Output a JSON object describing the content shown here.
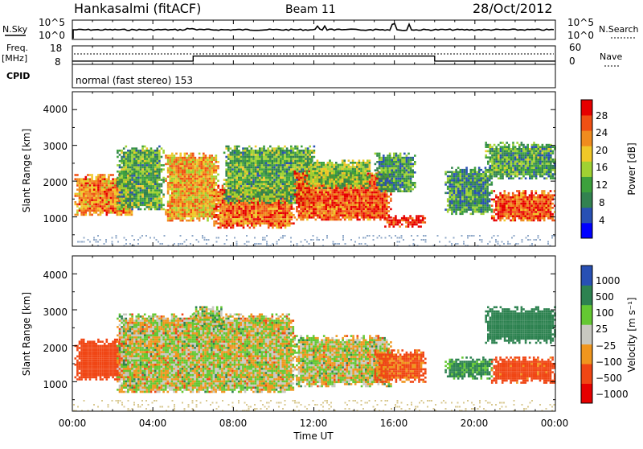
{
  "header": {
    "title": "Hankasalmi (fitACF)",
    "beam": "Beam 11",
    "date": "28/Oct/2012"
  },
  "top_panels": {
    "nsky_label": "N.Sky",
    "nsearch_label": "N.Search",
    "nsky_ticks": [
      "10^5",
      "10^0"
    ],
    "nsearch_ticks": [
      "10^5",
      "10^0"
    ],
    "freq_label": "Freq.",
    "freq_unit": "[MHz]",
    "freq_ticks": [
      "18",
      "8"
    ],
    "nave_label": "Nave",
    "nave_ticks": [
      "60",
      "0"
    ],
    "cpid_label": "CPID",
    "cpid_text": "normal (fast stereo) 153"
  },
  "power_panel": {
    "ylabel": "Slant Range [km]",
    "yticks": [
      "4000",
      "3000",
      "2000",
      "1000"
    ],
    "colorbar_label": "Power [dB]",
    "colorbar_ticks": [
      "28",
      "24",
      "20",
      "16",
      "12",
      "8",
      "4"
    ]
  },
  "velocity_panel": {
    "ylabel": "Slant Range [km]",
    "yticks": [
      "4000",
      "3000",
      "2000",
      "1000"
    ],
    "colorbar_label": "Velocity [m s⁻¹]",
    "colorbar_ticks": [
      "1000",
      "500",
      "100",
      "25",
      "−25",
      "−100",
      "−500",
      "−1000"
    ]
  },
  "xaxis": {
    "label": "Time UT",
    "ticks": [
      "00:00",
      "04:00",
      "08:00",
      "12:00",
      "16:00",
      "20:00",
      "00:00"
    ]
  },
  "chart_data": {
    "type": "heatmap",
    "title": "Hankasalmi (fitACF)",
    "xlabel": "Time UT",
    "ylabel": "Slant Range [km]",
    "x_range_hours": [
      0,
      24
    ],
    "ylim": [
      180,
      4500
    ],
    "freq_MHz": {
      "times": [
        0,
        6,
        6,
        18,
        18,
        24
      ],
      "values": [
        9.8,
        9.8,
        12.5,
        12.5,
        9.8,
        9.8
      ]
    },
    "nave": {
      "typical": 30
    },
    "power_colors": [
      "#0000ff",
      "#2850b4",
      "#328250",
      "#3ca03c",
      "#a0d232",
      "#f0c828",
      "#f08c1e",
      "#f05014",
      "#e60000"
    ],
    "power_scale_dB": [
      0,
      30
    ],
    "velocity_colors": [
      "#e60000",
      "#f04614",
      "#f0961e",
      "#c8c8c0",
      "#64c832",
      "#2d8250",
      "#2850b4"
    ],
    "velocity_scale_ms": [
      -1200,
      1200
    ],
    "power_echo_regions": [
      {
        "t0": 0.1,
        "t1": 3.0,
        "r0": 1050,
        "r1": 2200,
        "power_dB": 22
      },
      {
        "t0": 2.2,
        "t1": 4.5,
        "r0": 1200,
        "r1": 3000,
        "power_dB": 12
      },
      {
        "t0": 4.6,
        "t1": 7.2,
        "r0": 900,
        "r1": 2800,
        "power_dB": 20
      },
      {
        "t0": 7.0,
        "t1": 11.0,
        "r0": 700,
        "r1": 1900,
        "power_dB": 24
      },
      {
        "t0": 7.5,
        "t1": 12.0,
        "r0": 1400,
        "r1": 3000,
        "power_dB": 12
      },
      {
        "t0": 11.0,
        "t1": 15.8,
        "r0": 900,
        "r1": 2300,
        "power_dB": 25
      },
      {
        "t0": 11.5,
        "t1": 14.8,
        "r0": 1800,
        "r1": 2600,
        "power_dB": 14
      },
      {
        "t0": 15.0,
        "t1": 17.0,
        "r0": 1700,
        "r1": 2800,
        "power_dB": 10
      },
      {
        "t0": 15.5,
        "t1": 17.5,
        "r0": 750,
        "r1": 1050,
        "power_dB": 28
      },
      {
        "t0": 18.5,
        "t1": 20.8,
        "r0": 1100,
        "r1": 2400,
        "power_dB": 10
      },
      {
        "t0": 20.8,
        "t1": 24.0,
        "r0": 900,
        "r1": 1750,
        "power_dB": 25
      },
      {
        "t0": 20.5,
        "t1": 24.0,
        "r0": 2100,
        "r1": 3100,
        "power_dB": 11
      }
    ],
    "velocity_echo_regions": [
      {
        "t0": 0.1,
        "t1": 3.0,
        "r0": 1050,
        "r1": 2200,
        "velocity_ms": -250
      },
      {
        "t0": 2.2,
        "t1": 11.0,
        "r0": 700,
        "r1": 2900,
        "velocity_ms": 0
      },
      {
        "t0": 6.0,
        "t1": 7.5,
        "r0": 2500,
        "r1": 3100,
        "velocity_ms": 30
      },
      {
        "t0": 11.0,
        "t1": 15.8,
        "r0": 900,
        "r1": 2300,
        "velocity_ms": 0
      },
      {
        "t0": 15.0,
        "t1": 17.5,
        "r0": 1000,
        "r1": 1900,
        "velocity_ms": -150
      },
      {
        "t0": 18.5,
        "t1": 20.8,
        "r0": 1100,
        "r1": 1700,
        "velocity_ms": 150
      },
      {
        "t0": 20.8,
        "t1": 24.0,
        "r0": 1000,
        "r1": 1700,
        "velocity_ms": -200
      },
      {
        "t0": 20.5,
        "t1": 24.0,
        "r0": 2100,
        "r1": 3100,
        "velocity_ms": 300
      }
    ]
  }
}
